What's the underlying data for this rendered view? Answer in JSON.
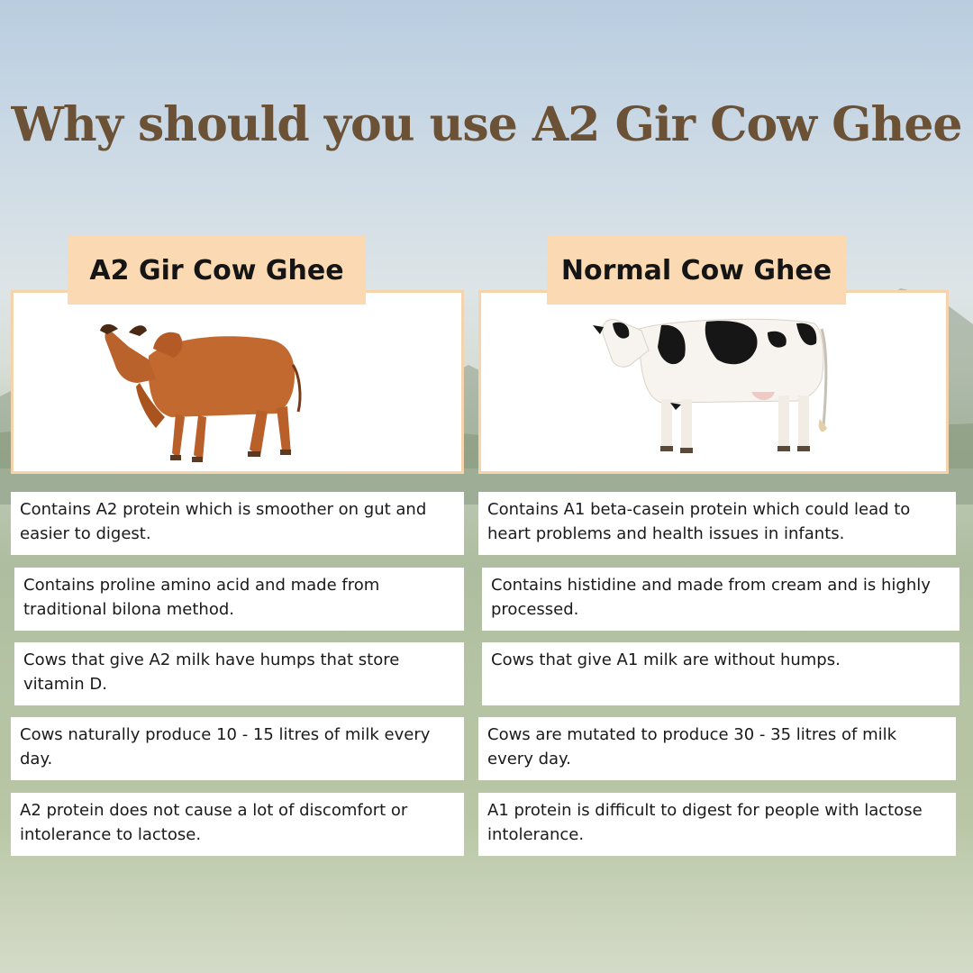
{
  "title": "Why should you use A2 Gir Cow Ghee",
  "left": {
    "heading": "A2 Gir Cow Ghee",
    "image_icon": "gir-cow-image",
    "points": [
      "Contains A2 protein which is smoother on gut and easier to digest.",
      "Contains proline amino acid and made from traditional bilona method.",
      "Cows that give A2 milk have humps that store vitamin D.",
      "Cows naturally produce 10 - 15 litres of milk every day.",
      "A2 protein does not cause a lot of discomfort or intolerance to lactose."
    ]
  },
  "right": {
    "heading": "Normal Cow Ghee",
    "image_icon": "holstein-cow-image",
    "points": [
      "Contains A1 beta-casein protein which could lead to heart problems and health issues in infants.",
      "Contains histidine and made from cream and is highly processed.",
      "Cows that give A1 milk are without humps.",
      "Cows are mutated to produce 30 - 35 litres of milk every day.",
      "A1 protein is difficult to digest for people with lactose intolerance."
    ]
  },
  "colors": {
    "title": "#6b5236",
    "label_bg": "#fbd9b2",
    "card_border": "#f5d3ad"
  }
}
